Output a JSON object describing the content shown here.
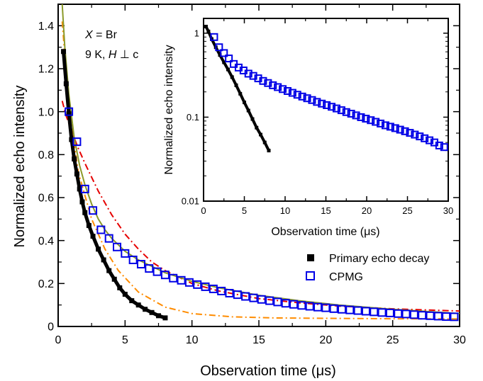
{
  "chart_data": [
    {
      "type": "scatter",
      "role": "main",
      "xlabel_prefix": "Observation time (",
      "xlabel_unit": "μs",
      "xlabel_suffix": ")",
      "ylabel": "Normalized echo intensity",
      "xlim": [
        0,
        30
      ],
      "ylim": [
        0,
        1.5
      ],
      "yscale": "linear",
      "x_ticks": [
        "0",
        "5",
        "10",
        "15",
        "20",
        "25",
        "30"
      ],
      "y_ticks": [
        "0",
        "0.2",
        "0.4",
        "0.6",
        "0.8",
        "1.0",
        "1.2",
        "1.4"
      ],
      "annotation": {
        "line1_italic": "X",
        "line1_rest": " = Br",
        "line2_prefix": "9 K, ",
        "line2_italic": "H",
        "line2_rest": " ⊥ c"
      },
      "legend": {
        "position": "lower-right",
        "entries": [
          {
            "label": "Primary echo decay",
            "marker": "filled-square",
            "color": "#000000"
          },
          {
            "label": "CPMG",
            "marker": "open-square",
            "color": "#0000e6"
          }
        ]
      },
      "series": [
        {
          "name": "Primary echo decay",
          "marker": "filled-square",
          "color": "#000000",
          "x": [
            0.4,
            0.6,
            0.8,
            1.0,
            1.2,
            1.4,
            1.6,
            1.8,
            2.0,
            2.3,
            2.6,
            3.0,
            3.4,
            3.8,
            4.2,
            4.6,
            5.0,
            5.5,
            6.0,
            6.5,
            7.0,
            7.5,
            8.0
          ],
          "y": [
            1.28,
            1.13,
            0.99,
            0.87,
            0.78,
            0.71,
            0.64,
            0.58,
            0.53,
            0.47,
            0.42,
            0.36,
            0.31,
            0.26,
            0.22,
            0.18,
            0.15,
            0.12,
            0.1,
            0.08,
            0.065,
            0.05,
            0.04
          ]
        },
        {
          "name": "CPMG",
          "marker": "open-square",
          "color": "#0000e6",
          "x": [
            0.8,
            1.4,
            2.0,
            2.6,
            3.2,
            3.8,
            4.4,
            5.0,
            5.6,
            6.2,
            6.8,
            7.4,
            8.0,
            8.6,
            9.2,
            9.8,
            10.4,
            11.0,
            11.6,
            12.2,
            12.8,
            13.4,
            14.0,
            14.6,
            15.2,
            15.8,
            16.4,
            17.0,
            17.6,
            18.2,
            18.8,
            19.4,
            20.0,
            20.6,
            21.2,
            21.8,
            22.4,
            23.0,
            23.6,
            24.2,
            24.8,
            25.4,
            26.0,
            26.6,
            27.2,
            27.8,
            28.4,
            29.0,
            29.6
          ],
          "y": [
            1.0,
            0.86,
            0.64,
            0.54,
            0.45,
            0.41,
            0.37,
            0.34,
            0.31,
            0.29,
            0.27,
            0.255,
            0.24,
            0.225,
            0.215,
            0.205,
            0.195,
            0.185,
            0.175,
            0.165,
            0.155,
            0.148,
            0.14,
            0.133,
            0.126,
            0.12,
            0.114,
            0.108,
            0.103,
            0.098,
            0.094,
            0.09,
            0.087,
            0.083,
            0.08,
            0.077,
            0.074,
            0.071,
            0.068,
            0.065,
            0.063,
            0.06,
            0.058,
            0.055,
            0.052,
            0.05,
            0.048,
            0.046,
            0.045
          ]
        }
      ],
      "fits": [
        {
          "style": "dash-dot",
          "color": "#ff8c00",
          "x": [
            0.3,
            0.8,
            1.5,
            2.5,
            3.5,
            4.5,
            6.0,
            8.0,
            10.0,
            13.0,
            16.0,
            20.0,
            25.0,
            30.0
          ],
          "y": [
            1.42,
            1.02,
            0.72,
            0.5,
            0.36,
            0.26,
            0.16,
            0.09,
            0.06,
            0.045,
            0.04,
            0.038,
            0.036,
            0.035
          ]
        },
        {
          "style": "dash-dot",
          "color": "#e60000",
          "x": [
            0.3,
            0.6,
            1.0,
            1.5,
            2.0,
            3.0,
            4.0,
            5.0,
            6.0,
            7.0,
            8.0,
            10.0,
            12.0,
            15.0,
            18.0,
            21.0,
            25.0,
            30.0
          ],
          "y": [
            1.05,
            0.98,
            0.91,
            0.83,
            0.76,
            0.63,
            0.52,
            0.43,
            0.36,
            0.3,
            0.26,
            0.2,
            0.165,
            0.13,
            0.11,
            0.095,
            0.082,
            0.072
          ]
        },
        {
          "style": "solid",
          "color": "#8b9a2a",
          "x": [
            0.3,
            0.5,
            0.8,
            1.2,
            1.6,
            2.0,
            2.5,
            3.0,
            3.5,
            4.0,
            5.0,
            6.0,
            7.0,
            8.0,
            10.0,
            12.0,
            15.0,
            18.0,
            21.0,
            25.0,
            30.0
          ],
          "y": [
            1.5,
            1.3,
            1.08,
            0.88,
            0.75,
            0.66,
            0.57,
            0.5,
            0.45,
            0.41,
            0.35,
            0.31,
            0.28,
            0.25,
            0.21,
            0.18,
            0.145,
            0.12,
            0.1,
            0.08,
            0.06
          ]
        }
      ]
    },
    {
      "type": "scatter",
      "role": "inset",
      "xlabel_prefix": "Observation time (",
      "xlabel_unit": "μs",
      "xlabel_suffix": ")",
      "ylabel": "Normalized echo intensity",
      "xlim": [
        0,
        30
      ],
      "ylim": [
        0.01,
        1.5
      ],
      "yscale": "log",
      "x_ticks": [
        "0",
        "5",
        "10",
        "15",
        "20",
        "25",
        "30"
      ],
      "y_ticks": [
        "0.01",
        "0.1",
        "1"
      ],
      "series": [
        {
          "name": "Primary echo decay",
          "marker": "filled-square",
          "color": "#000000",
          "x": [
            0.3,
            0.6,
            1.0,
            1.5,
            2.0,
            2.5,
            3.0,
            3.5,
            4.0,
            4.5,
            5.0,
            5.5,
            6.0,
            6.5,
            7.0,
            7.5,
            8.0
          ],
          "y": [
            1.2,
            1.05,
            0.85,
            0.68,
            0.55,
            0.45,
            0.37,
            0.3,
            0.24,
            0.19,
            0.15,
            0.12,
            0.095,
            0.075,
            0.062,
            0.05,
            0.04
          ]
        },
        {
          "name": "CPMG",
          "marker": "open-square",
          "color": "#0000e6",
          "x": [
            1.3,
            1.9,
            2.5,
            3.1,
            3.7,
            4.3,
            4.9,
            5.5,
            6.1,
            6.7,
            7.3,
            7.9,
            8.5,
            9.1,
            9.7,
            10.3,
            10.9,
            11.5,
            12.1,
            12.7,
            13.3,
            13.9,
            14.5,
            15.1,
            15.7,
            16.3,
            16.9,
            17.5,
            18.1,
            18.7,
            19.3,
            19.9,
            20.5,
            21.1,
            21.7,
            22.3,
            22.9,
            23.5,
            24.1,
            24.7,
            25.3,
            25.9,
            26.5,
            27.1,
            27.7,
            28.3,
            28.9,
            29.5
          ],
          "y": [
            0.9,
            0.68,
            0.58,
            0.5,
            0.43,
            0.39,
            0.36,
            0.33,
            0.31,
            0.29,
            0.27,
            0.255,
            0.24,
            0.228,
            0.216,
            0.205,
            0.195,
            0.185,
            0.176,
            0.168,
            0.16,
            0.152,
            0.145,
            0.139,
            0.133,
            0.127,
            0.121,
            0.115,
            0.11,
            0.105,
            0.1,
            0.096,
            0.092,
            0.088,
            0.084,
            0.08,
            0.077,
            0.074,
            0.071,
            0.068,
            0.065,
            0.062,
            0.059,
            0.056,
            0.053,
            0.05,
            0.046,
            0.044
          ]
        }
      ]
    }
  ]
}
